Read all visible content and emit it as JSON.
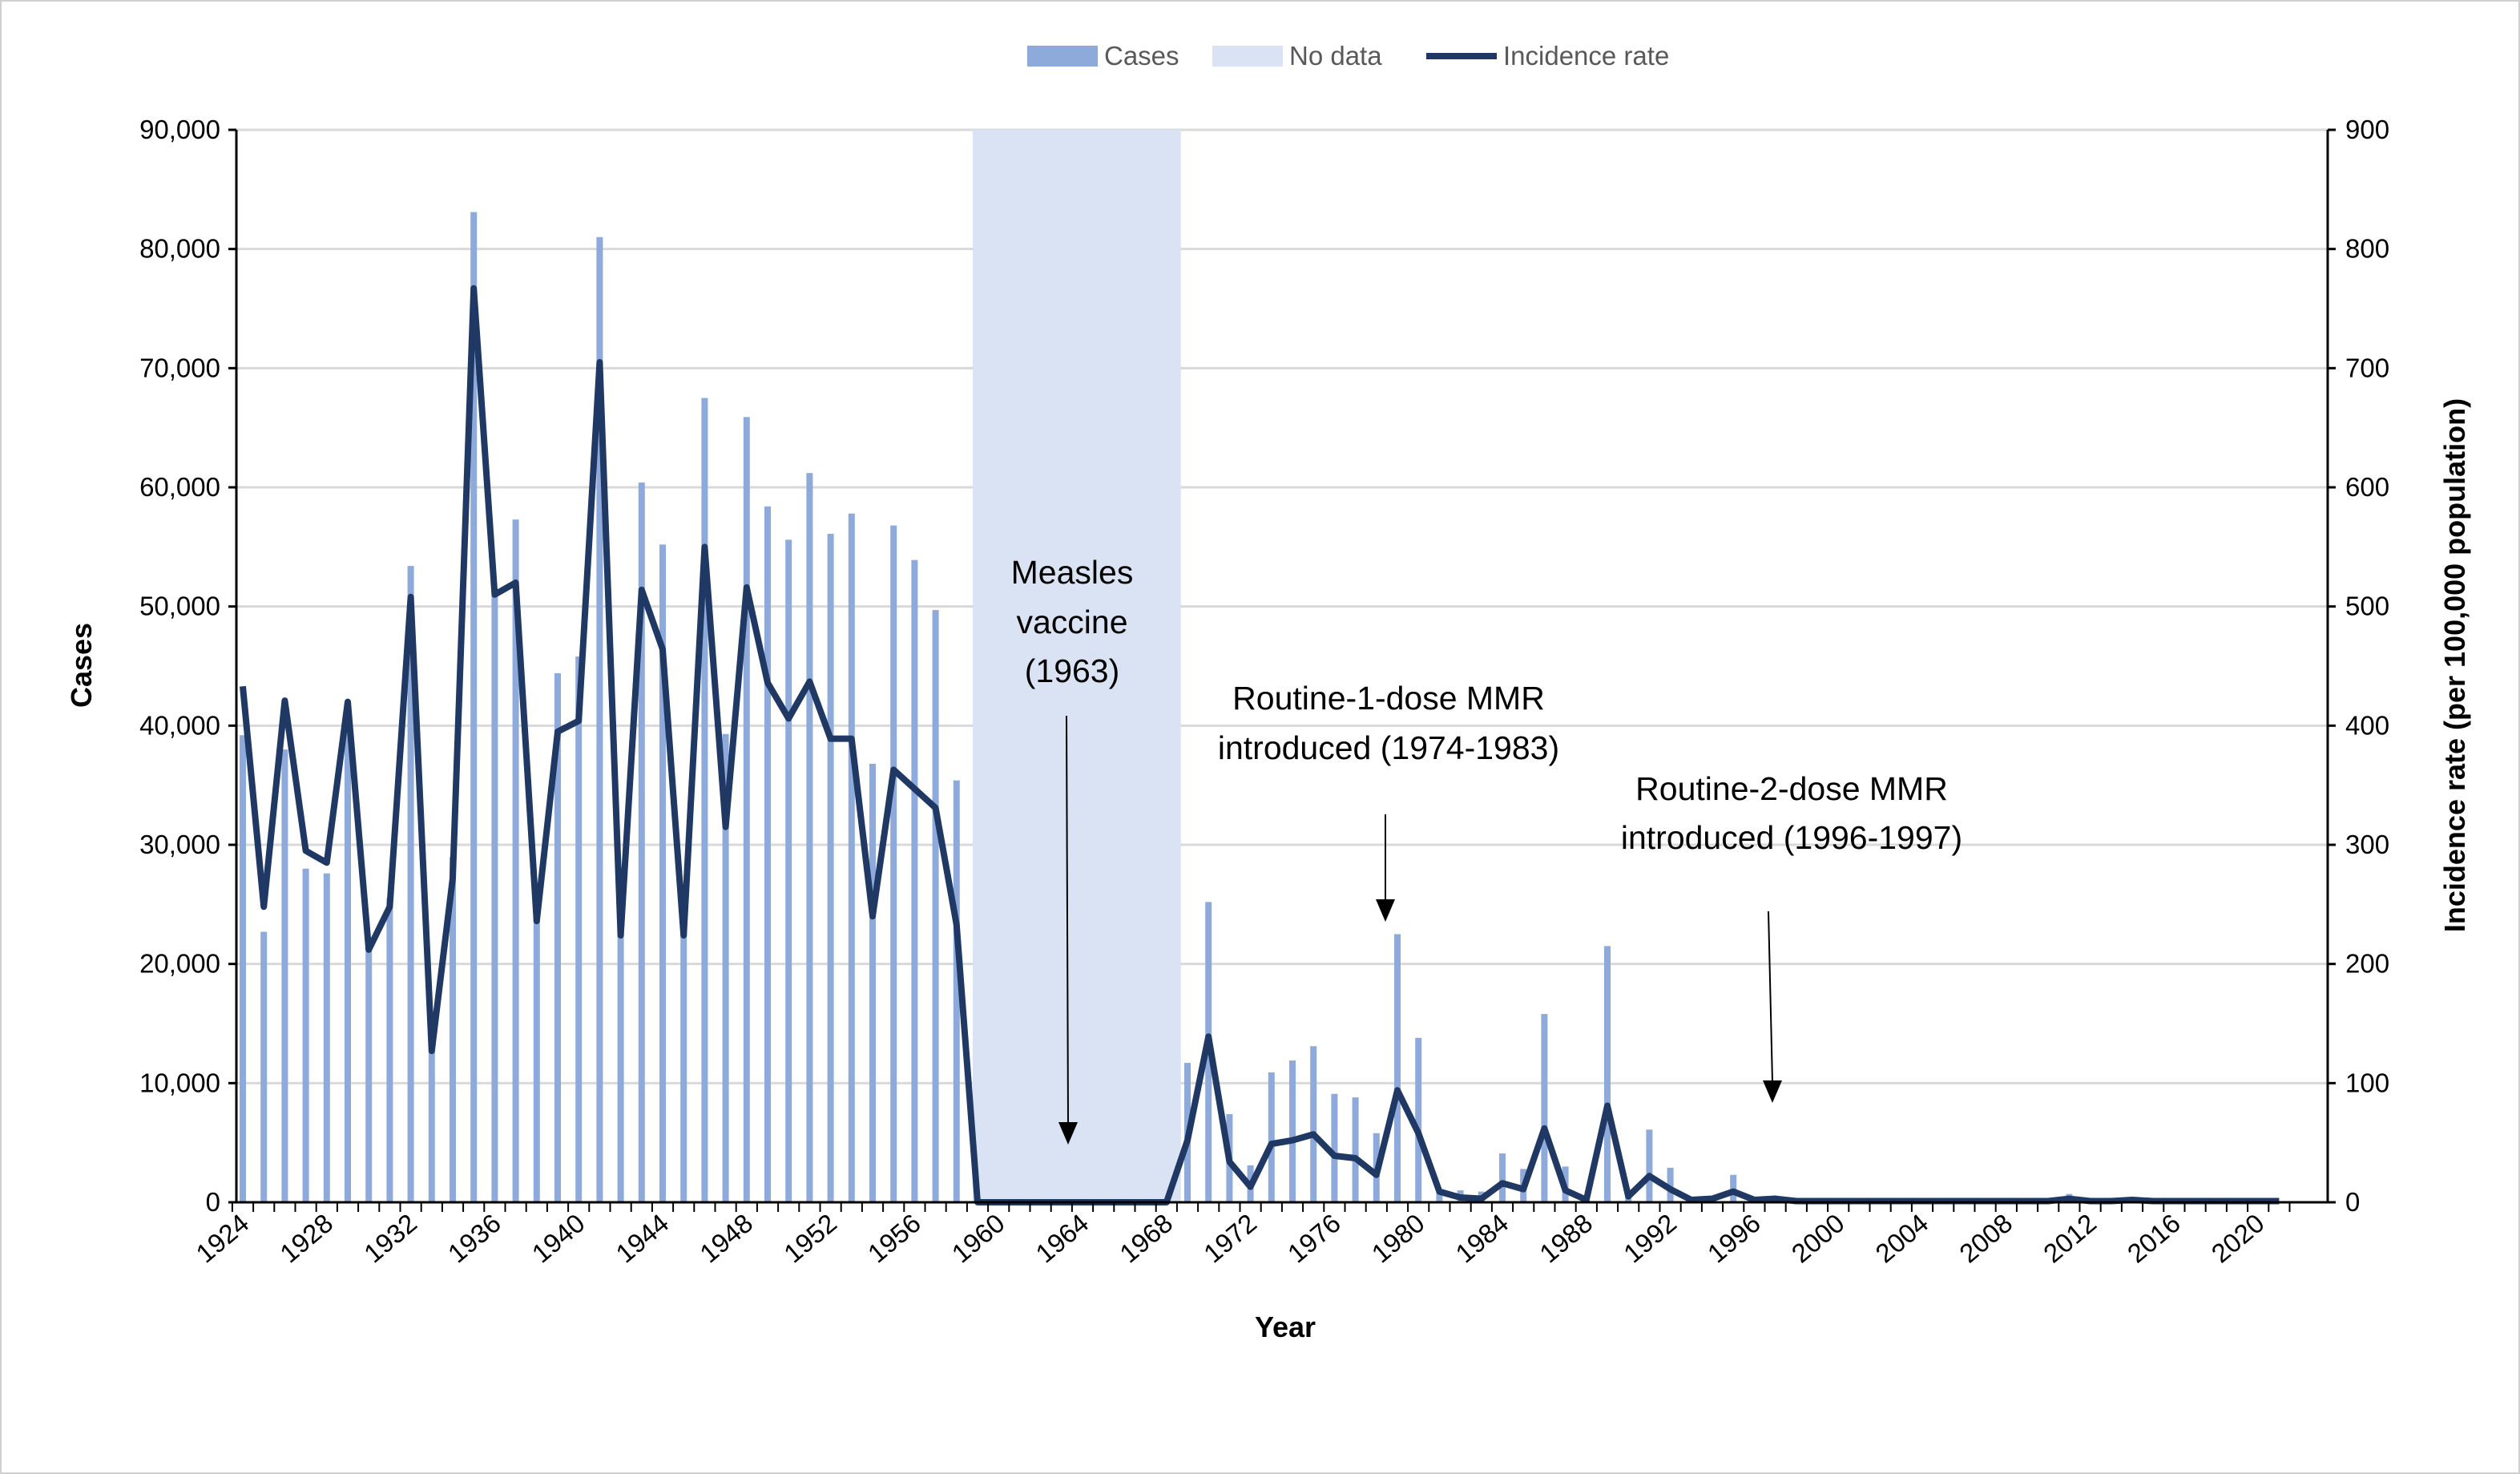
{
  "chart_data": {
    "type": "bar+line",
    "title": "",
    "xlabel": "Year",
    "ylabel": "Cases",
    "y2label": "Incidence rate (per 100,000 population)",
    "ylim": [
      0,
      90000
    ],
    "y2lim": [
      0,
      900
    ],
    "yticks": [
      "0",
      "10,000",
      "20,000",
      "30,000",
      "40,000",
      "50,000",
      "60,000",
      "70,000",
      "80,000",
      "90,000"
    ],
    "y2ticks": [
      "0",
      "100",
      "200",
      "300",
      "400",
      "500",
      "600",
      "700",
      "800",
      "900"
    ],
    "xtick_labels": [
      "1924",
      "1928",
      "1932",
      "1936",
      "1940",
      "1944",
      "1948",
      "1952",
      "1956",
      "1960",
      "1964",
      "1968",
      "1972",
      "1976",
      "1980",
      "1984",
      "1988",
      "1992",
      "1996",
      "2000",
      "2004",
      "2008",
      "2012",
      "2016",
      "2020"
    ],
    "grid": true,
    "legend": {
      "placement": "top-center",
      "entries": [
        "Cases",
        "No data",
        "Incidence rate"
      ]
    },
    "colors": {
      "cases": "#8eaadb",
      "no_data": "#dae3f3",
      "rate": "#203864"
    },
    "no_data_range": [
      1959,
      1968
    ],
    "years_start": 1924,
    "cases": [
      39200,
      22700,
      38000,
      28000,
      27600,
      42000,
      21500,
      25500,
      53400,
      13000,
      29000,
      83100,
      51000,
      57300,
      24000,
      44400,
      45800,
      81000,
      22700,
      60400,
      55200,
      22700,
      67500,
      39300,
      65900,
      58400,
      55600,
      61200,
      56100,
      57800,
      36800,
      56800,
      53900,
      49700,
      35400,
      null,
      null,
      null,
      null,
      null,
      null,
      null,
      null,
      null,
      null,
      11700,
      25200,
      7400,
      3100,
      10900,
      11900,
      13100,
      9100,
      8800,
      5800,
      22500,
      13800,
      1100,
      1000,
      900,
      4100,
      2800,
      15800,
      3000,
      200,
      21500,
      700,
      6100,
      2900,
      200,
      200,
      2300,
      300,
      150,
      100,
      100,
      200,
      100,
      100,
      100,
      100,
      100,
      100,
      100,
      100,
      100,
      100,
      700,
      100,
      100,
      400,
      150,
      100,
      100,
      100,
      100,
      100,
      100
    ],
    "incidence_rate": [
      433,
      248,
      421,
      295,
      285,
      420,
      212,
      248,
      508,
      127,
      272,
      767,
      510,
      520,
      236,
      395,
      404,
      705,
      224,
      514,
      464,
      224,
      550,
      315,
      516,
      436,
      406,
      437,
      389,
      389,
      240,
      363,
      347,
      331,
      233,
      0,
      0,
      0,
      0,
      0,
      0,
      0,
      0,
      0,
      0,
      52,
      139,
      34,
      13,
      49,
      52,
      57,
      39,
      37,
      23,
      94,
      58,
      9,
      4,
      3,
      16,
      11,
      62,
      10,
      2,
      81,
      5,
      22,
      11,
      2,
      3,
      9,
      2,
      3,
      1,
      1,
      1,
      1,
      1,
      1,
      1,
      1,
      1,
      1,
      1,
      1,
      1,
      3,
      1,
      1,
      2,
      1,
      1,
      1,
      1,
      1,
      1,
      1
    ],
    "annotations": [
      {
        "lines": [
          "Measles",
          "vaccine",
          "(1963)"
        ],
        "year": 1963
      },
      {
        "lines": [
          "Routine-1-dose MMR",
          "introduced (1974-1983)"
        ],
        "year": 1979
      },
      {
        "lines": [
          "Routine-2-dose MMR",
          "introduced (1996-1997)"
        ],
        "year": 1997
      }
    ]
  }
}
